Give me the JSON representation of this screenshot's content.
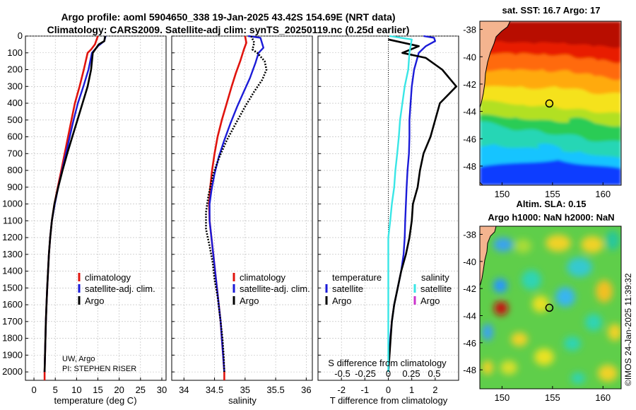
{
  "header": {
    "title_line1": "Argo profile: aoml 5904650_338 19-Jan-2025 43.42S 154.69E (NRT data)",
    "title_line2": "Climatology: CARS2009. Satellite-adj clim: synTS_20250119.nc (0.25d earlier)"
  },
  "credits": {
    "line1": "UW, Argo",
    "line2": "PI: STEPHEN RISER"
  },
  "footer": {
    "stamp": "©IMOS 24-Jan-2025 11:39:32"
  },
  "colors": {
    "climatology": "#e0140e",
    "satellite": "#1b1bd8",
    "argo": "#000000",
    "sat_sal": "#39e6e6",
    "argo_sal": "#cc33cc"
  },
  "chart_data": [
    {
      "type": "line",
      "id": "temperature",
      "xlabel": "temperature (deg C)",
      "ylabel": "",
      "xlim": [
        -2,
        31
      ],
      "ylim": [
        2050,
        0
      ],
      "xticks": [
        "0",
        "5",
        "10",
        "15",
        "20",
        "25",
        "30"
      ],
      "xtick_values": [
        0,
        5,
        10,
        15,
        20,
        25,
        30
      ],
      "yticks": [
        "0",
        "100",
        "200",
        "300",
        "400",
        "500",
        "600",
        "700",
        "800",
        "900",
        "1000",
        "1100",
        "1200",
        "1300",
        "1400",
        "1500",
        "1600",
        "1700",
        "1800",
        "1900",
        "2000"
      ],
      "legend": [
        "climatology",
        "satellite-adj. clim.",
        "Argo"
      ],
      "series": [
        {
          "name": "climatology",
          "color": "#e0140e",
          "points": [
            [
              15,
              0
            ],
            [
              14.3,
              50
            ],
            [
              13.4,
              80
            ],
            [
              12.6,
              100
            ],
            [
              11.7,
              200
            ],
            [
              10.7,
              300
            ],
            [
              9.6,
              400
            ],
            [
              8.8,
              500
            ],
            [
              8,
              600
            ],
            [
              7.2,
              700
            ],
            [
              6.4,
              800
            ],
            [
              5.6,
              900
            ],
            [
              4.8,
              1000
            ],
            [
              4.2,
              1100
            ],
            [
              3.8,
              1200
            ],
            [
              3.5,
              1300
            ],
            [
              3.3,
              1400
            ],
            [
              3.1,
              1500
            ],
            [
              2.95,
              1600
            ],
            [
              2.8,
              1700
            ],
            [
              2.7,
              1800
            ],
            [
              2.6,
              1900
            ],
            [
              2.5,
              2000
            ],
            [
              2.5,
              2050
            ]
          ]
        },
        {
          "name": "satellite-adj. clim.",
          "color": "#1b1bd8",
          "points": [
            [
              16.8,
              0
            ],
            [
              16.5,
              30
            ],
            [
              15,
              60
            ],
            [
              13.6,
              100
            ],
            [
              12.8,
              200
            ],
            [
              11.6,
              300
            ],
            [
              10.3,
              400
            ],
            [
              9.3,
              500
            ],
            [
              8.4,
              600
            ],
            [
              7.5,
              700
            ],
            [
              6.6,
              800
            ],
            [
              5.7,
              900
            ],
            [
              4.9,
              1000
            ],
            [
              4.2,
              1100
            ],
            [
              3.8,
              1200
            ],
            [
              3.5,
              1300
            ],
            [
              3.3,
              1400
            ],
            [
              3.1,
              1500
            ],
            [
              2.95,
              1600
            ],
            [
              2.8,
              1700
            ],
            [
              2.7,
              1800
            ],
            [
              2.6,
              1900
            ],
            [
              2.5,
              2000
            ]
          ]
        },
        {
          "name": "Argo",
          "color": "#000000",
          "points": [
            [
              16.7,
              0
            ],
            [
              16.5,
              30
            ],
            [
              15.2,
              50
            ],
            [
              13.8,
              100
            ],
            [
              13.4,
              200
            ],
            [
              12.6,
              300
            ],
            [
              11.4,
              400
            ],
            [
              10.2,
              500
            ],
            [
              9,
              600
            ],
            [
              7.8,
              700
            ],
            [
              6.7,
              800
            ],
            [
              5.7,
              900
            ],
            [
              4.8,
              1000
            ],
            [
              4.2,
              1100
            ],
            [
              3.8,
              1200
            ],
            [
              3.5,
              1300
            ],
            [
              3.3,
              1400
            ],
            [
              3.1,
              1500
            ],
            [
              2.95,
              1600
            ],
            [
              2.8,
              1700
            ],
            [
              2.7,
              1800
            ],
            [
              2.6,
              1900
            ],
            [
              2.5,
              2000
            ]
          ]
        }
      ]
    },
    {
      "type": "line",
      "id": "salinity",
      "xlabel": "salinity",
      "xlim": [
        33.8,
        36.1
      ],
      "ylim": [
        2050,
        0
      ],
      "xticks": [
        "34",
        "34.5",
        "35",
        "35.5",
        "36"
      ],
      "xtick_values": [
        34,
        34.5,
        35,
        35.5,
        36
      ],
      "legend": [
        "climatology",
        "satellite-adj. clim.",
        "Argo"
      ],
      "series": [
        {
          "name": "climatology",
          "color": "#e0140e",
          "points": [
            [
              35.0,
              0
            ],
            [
              35.02,
              40
            ],
            [
              34.98,
              80
            ],
            [
              34.92,
              150
            ],
            [
              34.85,
              220
            ],
            [
              34.78,
              300
            ],
            [
              34.7,
              400
            ],
            [
              34.62,
              500
            ],
            [
              34.55,
              600
            ],
            [
              34.5,
              700
            ],
            [
              34.46,
              800
            ],
            [
              34.43,
              900
            ],
            [
              34.41,
              1000
            ],
            [
              34.42,
              1100
            ],
            [
              34.45,
              1200
            ],
            [
              34.48,
              1300
            ],
            [
              34.51,
              1400
            ],
            [
              34.54,
              1500
            ],
            [
              34.57,
              1600
            ],
            [
              34.6,
              1700
            ],
            [
              34.62,
              1800
            ],
            [
              34.64,
              1900
            ],
            [
              34.66,
              2000
            ],
            [
              34.66,
              2050
            ]
          ]
        },
        {
          "name": "satellite-adj. clim.",
          "color": "#1b1bd8",
          "points": [
            [
              35.05,
              0
            ],
            [
              35.25,
              10
            ],
            [
              35.3,
              70
            ],
            [
              35.22,
              100
            ],
            [
              35.17,
              160
            ],
            [
              35.08,
              250
            ],
            [
              34.98,
              330
            ],
            [
              34.87,
              420
            ],
            [
              34.76,
              520
            ],
            [
              34.66,
              620
            ],
            [
              34.57,
              720
            ],
            [
              34.5,
              820
            ],
            [
              34.45,
              920
            ],
            [
              34.42,
              1000
            ],
            [
              34.42,
              1100
            ],
            [
              34.45,
              1200
            ],
            [
              34.48,
              1300
            ],
            [
              34.51,
              1400
            ],
            [
              34.54,
              1500
            ],
            [
              34.57,
              1600
            ],
            [
              34.6,
              1700
            ],
            [
              34.62,
              1800
            ],
            [
              34.64,
              1900
            ],
            [
              34.66,
              2000
            ]
          ]
        },
        {
          "name": "Argo",
          "color": "#000000",
          "points": [
            [
              35.1,
              0
            ],
            [
              35.15,
              40
            ],
            [
              35.12,
              80
            ],
            [
              35.2,
              100
            ],
            [
              35.32,
              150
            ],
            [
              35.35,
              200
            ],
            [
              35.28,
              260
            ],
            [
              35.15,
              330
            ],
            [
              35.0,
              420
            ],
            [
              34.85,
              520
            ],
            [
              34.7,
              620
            ],
            [
              34.58,
              720
            ],
            [
              34.48,
              820
            ],
            [
              34.4,
              950
            ],
            [
              34.36,
              1050
            ],
            [
              34.36,
              1150
            ],
            [
              34.42,
              1250
            ],
            [
              34.47,
              1350
            ],
            [
              34.5,
              1450
            ],
            [
              34.55,
              1550
            ],
            [
              34.6,
              1700
            ],
            [
              34.63,
              1800
            ],
            [
              34.65,
              1900
            ],
            [
              34.66,
              2000
            ]
          ]
        }
      ]
    },
    {
      "type": "line",
      "id": "difference",
      "xlabel": "T difference from climatology",
      "top_label": "S difference from climatology",
      "xlim": [
        -3,
        3
      ],
      "ylim": [
        2050,
        0
      ],
      "xticks": [
        "-2",
        "-1",
        "0",
        "1",
        "2"
      ],
      "xtick_values": [
        -2,
        -1,
        0,
        1,
        2
      ],
      "s_ticks": [
        "-0.5",
        "-0.25",
        "0",
        "0.25",
        "0.5"
      ],
      "s_tick_values": [
        -0.5,
        -0.25,
        0,
        0.25,
        0.5
      ],
      "legend_left_title": "temperature",
      "legend_right_title": "salinity",
      "legend": [
        "satellite",
        "Argo",
        "satellite",
        "Argo"
      ],
      "series": [
        {
          "name": "T satellite",
          "color": "#1b1bd8",
          "points": [
            [
              1.5,
              0
            ],
            [
              1.95,
              10
            ],
            [
              2.0,
              30
            ],
            [
              1.6,
              60
            ],
            [
              1.3,
              100
            ],
            [
              1.1,
              200
            ],
            [
              1.0,
              300
            ],
            [
              0.95,
              400
            ],
            [
              0.9,
              500
            ],
            [
              0.9,
              600
            ],
            [
              0.88,
              700
            ],
            [
              0.82,
              800
            ],
            [
              0.78,
              900
            ],
            [
              0.75,
              1000
            ],
            [
              0.72,
              1100
            ],
            [
              0.7,
              1200
            ],
            [
              0.65,
              1300
            ],
            [
              0.55,
              1400
            ],
            [
              0.4,
              1500
            ],
            [
              0.25,
              1600
            ],
            [
              0.15,
              1700
            ],
            [
              0.08,
              1800
            ],
            [
              0.04,
              1900
            ],
            [
              0,
              2000
            ]
          ]
        },
        {
          "name": "T Argo",
          "color": "#000000",
          "points": [
            [
              0,
              20
            ],
            [
              1.3,
              60
            ],
            [
              0.6,
              100
            ],
            [
              1.6,
              130
            ],
            [
              2.3,
              200
            ],
            [
              2.9,
              300
            ],
            [
              2.2,
              400
            ],
            [
              2.0,
              500
            ],
            [
              1.8,
              600
            ],
            [
              1.5,
              700
            ],
            [
              1.35,
              800
            ],
            [
              1.25,
              900
            ],
            [
              1.05,
              1000
            ],
            [
              1.0,
              1100
            ],
            [
              0.9,
              1200
            ],
            [
              0.75,
              1300
            ],
            [
              0.55,
              1400
            ],
            [
              0.4,
              1500
            ],
            [
              0.25,
              1600
            ],
            [
              0.15,
              1700
            ],
            [
              0.1,
              1800
            ],
            [
              0.05,
              1900
            ],
            [
              0,
              2000
            ]
          ]
        },
        {
          "name": "S satellite",
          "color": "#39e6e6",
          "points": [
            [
              0.05,
              0
            ],
            [
              1.0,
              20
            ],
            [
              0.95,
              60
            ],
            [
              0.9,
              100
            ],
            [
              0.85,
              200
            ],
            [
              0.7,
              300
            ],
            [
              0.6,
              400
            ],
            [
              0.5,
              500
            ],
            [
              0.45,
              600
            ],
            [
              0.38,
              700
            ],
            [
              0.3,
              800
            ],
            [
              0.25,
              900
            ],
            [
              0.15,
              1000
            ],
            [
              0.08,
              1100
            ],
            [
              0,
              1200
            ],
            [
              0,
              1300
            ],
            [
              0,
              1400
            ],
            [
              0,
              1500
            ],
            [
              0,
              1600
            ],
            [
              0,
              1700
            ],
            [
              0,
              1800
            ],
            [
              0,
              1900
            ],
            [
              0,
              2000
            ]
          ]
        }
      ]
    },
    {
      "type": "heatmap",
      "id": "sst_map",
      "title": "sat. SST: 16.7 Argo: 17",
      "xticks": [
        "150",
        "155",
        "160"
      ],
      "xtick_values": [
        150,
        155,
        160
      ],
      "yticks": [
        "-38",
        "-40",
        "-42",
        "-44",
        "-46",
        "-48"
      ],
      "ytick_values": [
        -38,
        -40,
        -42,
        -44,
        -46,
        -48
      ],
      "xlim": [
        147.8,
        161.8
      ],
      "ylim": [
        -49.4,
        -37.4
      ],
      "marker": [
        154.69,
        -43.42
      ]
    },
    {
      "type": "heatmap",
      "id": "sla_map",
      "title_line1": "Altim. SLA: 0.15",
      "title_line2": "Argo h1000: NaN h2000: NaN",
      "xticks": [
        "150",
        "155",
        "160"
      ],
      "xtick_values": [
        150,
        155,
        160
      ],
      "yticks": [
        "-38",
        "-40",
        "-42",
        "-44",
        "-46",
        "-48"
      ],
      "ytick_values": [
        -38,
        -40,
        -42,
        -44,
        -46,
        -48
      ],
      "xlim": [
        147.8,
        161.8
      ],
      "ylim": [
        -49.4,
        -37.4
      ],
      "marker": [
        154.69,
        -43.42
      ]
    }
  ]
}
